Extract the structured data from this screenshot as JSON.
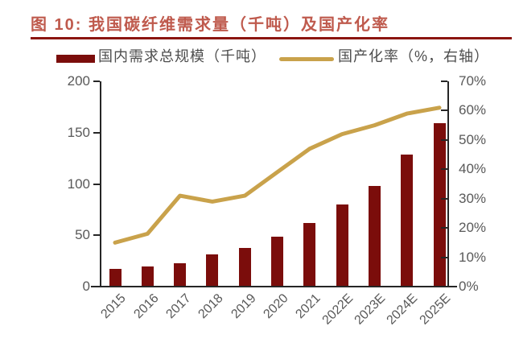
{
  "title": "图 10:  我国碳纤维需求量（千吨）及国产化率",
  "colors": {
    "title": "#bf5a4d",
    "title_rule": "#8b1510",
    "bar": "#7b0d0b",
    "line": "#c9a24b",
    "axis": "#262626",
    "tick_label": "#595959",
    "legend_label": "#4d4d4d"
  },
  "chart_data": {
    "type": "bar",
    "title": "我国碳纤维需求量（千吨）及国产化率",
    "categories": [
      "2015",
      "2016",
      "2017",
      "2018",
      "2019",
      "2020",
      "2021",
      "2022E",
      "2023E",
      "2024E",
      "2025E"
    ],
    "series": [
      {
        "name": "国内需求总规模（千吨）",
        "type": "bar",
        "axis": "left",
        "color": "#7b0d0b",
        "values": [
          17,
          20,
          23,
          31,
          38,
          49,
          62,
          80,
          98,
          129,
          159
        ]
      },
      {
        "name": "国产化率（%，右轴）",
        "type": "line",
        "axis": "right",
        "color": "#c9a24b",
        "values": [
          15,
          18,
          31,
          29,
          31,
          39,
          47,
          52,
          55,
          59,
          61
        ]
      }
    ],
    "left_axis": {
      "min": 0,
      "max": 200,
      "step": 50,
      "tick_labels_top_to_bottom": [
        "200",
        "150",
        "100",
        "50",
        "0"
      ]
    },
    "right_axis": {
      "min": 0,
      "max": 70,
      "step": 10,
      "unit": "%",
      "tick_labels_top_to_bottom": [
        "70%",
        "60%",
        "50%",
        "40%",
        "30%",
        "20%",
        "10%",
        "0%"
      ]
    },
    "grid": false,
    "legend_position": "top"
  }
}
